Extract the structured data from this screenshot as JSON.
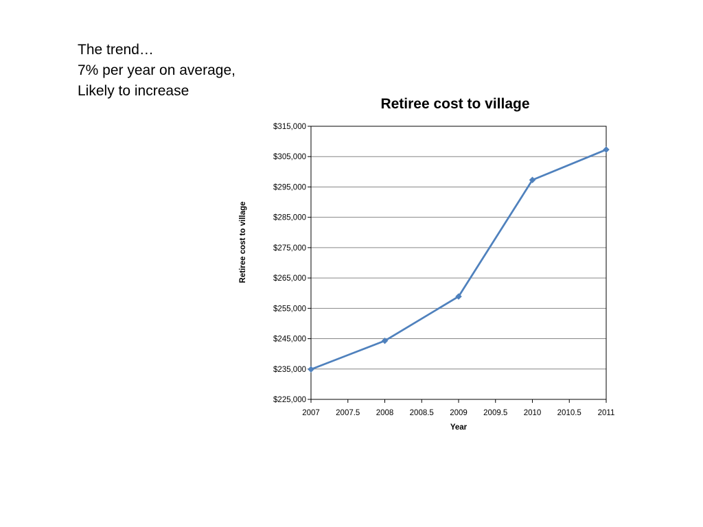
{
  "slide": {
    "lines": [
      "The trend…",
      "7% per year on average,",
      "Likely to increase"
    ]
  },
  "chart_data": {
    "type": "scatter",
    "title": "Retiree cost to village",
    "xlabel": "Year",
    "ylabel": "Retiree cost to village",
    "xlim": [
      2007,
      2011
    ],
    "ylim": [
      225000,
      315000
    ],
    "x_ticks": [
      2007,
      2007.5,
      2008,
      2008.5,
      2009,
      2009.5,
      2010,
      2010.5,
      2011
    ],
    "y_ticks": [
      225000,
      235000,
      245000,
      255000,
      265000,
      275000,
      285000,
      295000,
      305000,
      315000
    ],
    "x_tick_labels": [
      "2007",
      "2007.5",
      "2008",
      "2008.5",
      "2009",
      "2009.5",
      "2010",
      "2010.5",
      "2011"
    ],
    "y_tick_labels": [
      "$225,000",
      "$235,000",
      "$245,000",
      "$255,000",
      "$265,000",
      "$275,000",
      "$285,000",
      "$295,000",
      "$305,000",
      "$315,000"
    ],
    "grid": "horizontal",
    "legend": "none",
    "markers": "diamond",
    "lines_connected": true,
    "series": [
      {
        "x": [
          2007,
          2008,
          2009,
          2010,
          2011
        ],
        "y": [
          234900,
          244300,
          258900,
          297300,
          307300
        ],
        "color": "#4F81BD"
      }
    ]
  }
}
